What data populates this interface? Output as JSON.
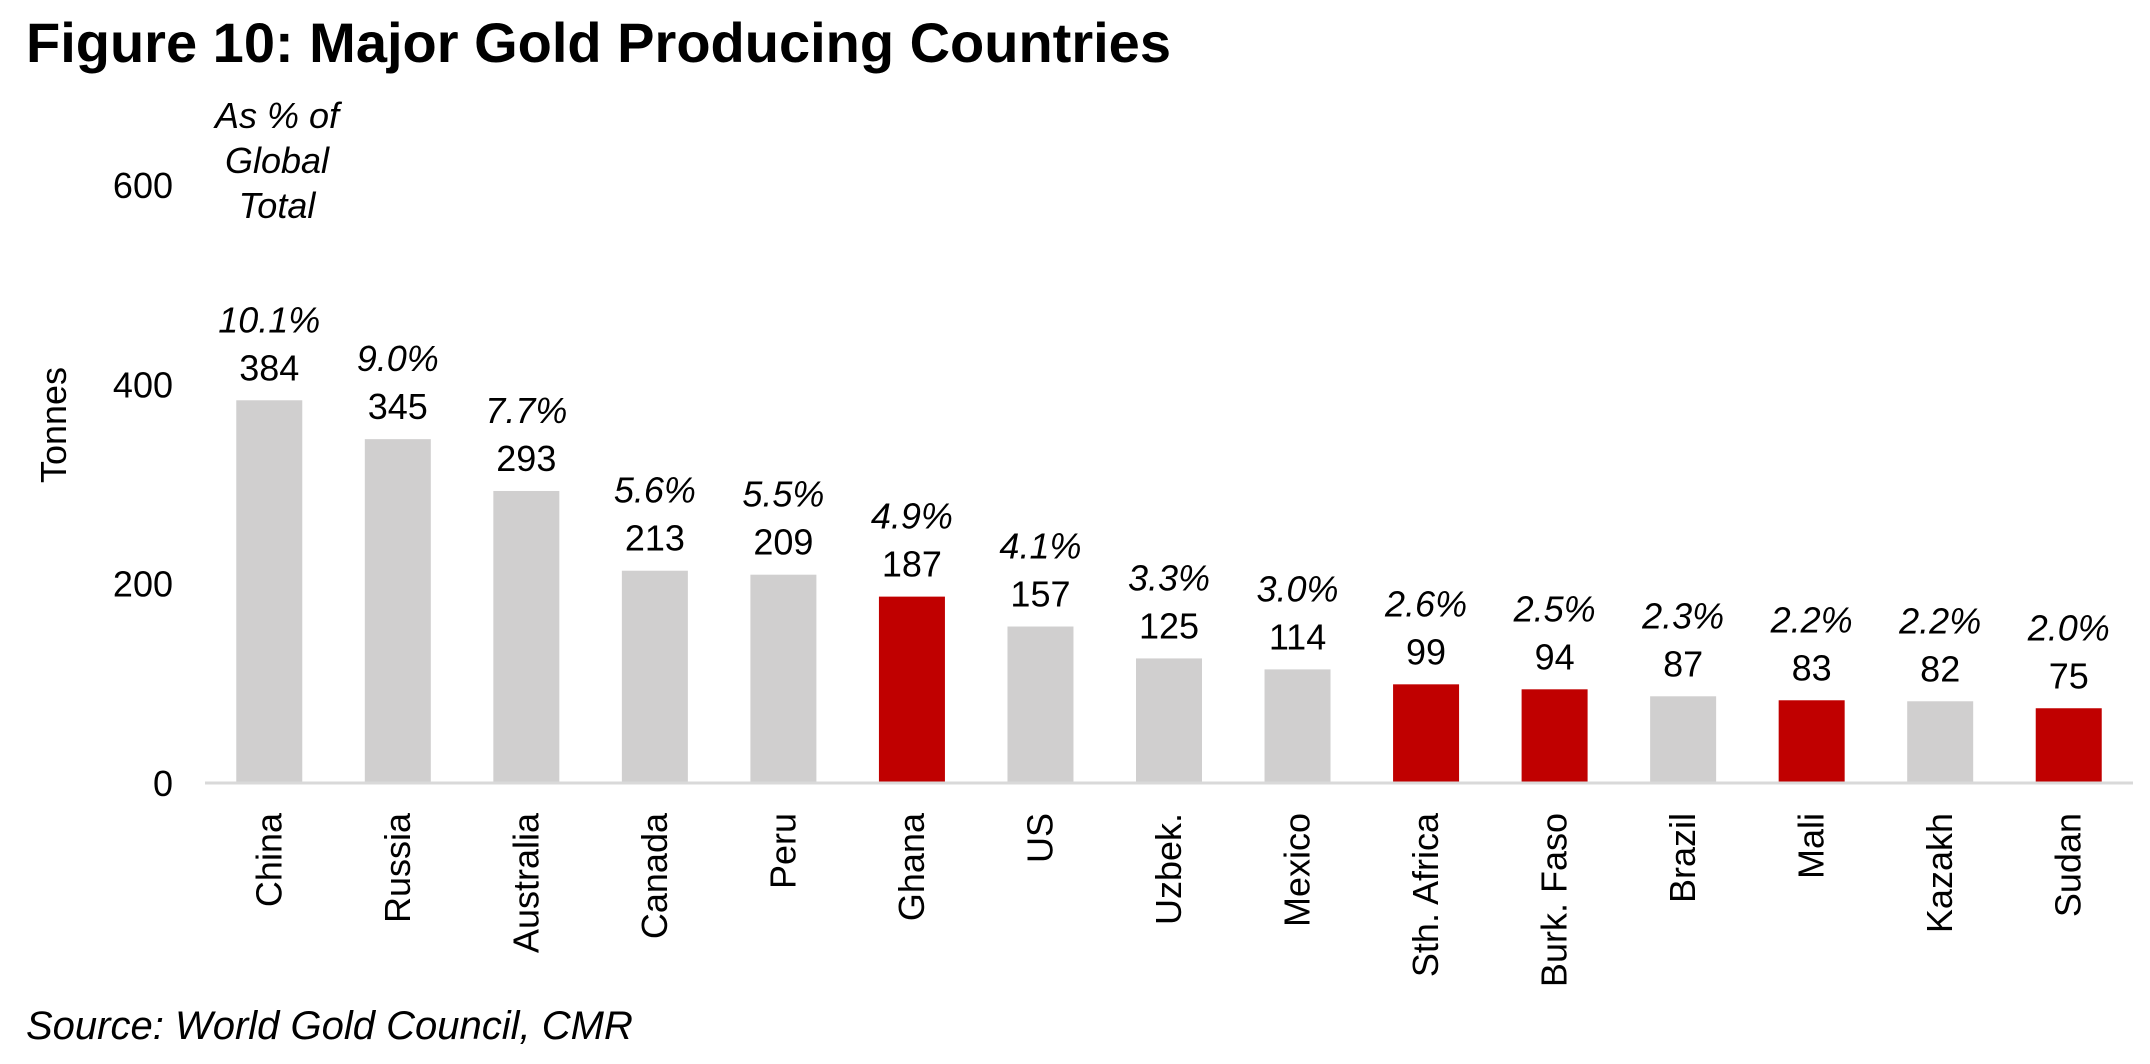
{
  "title": "Figure 10: Major Gold Producing Countries",
  "source": "Source: World Gold Council, CMR",
  "colors": {
    "default_bar": "#d0cfcf",
    "highlight_bar": "#c00000",
    "axis_line": "#d9d9d9",
    "text": "#000000"
  },
  "chart_data": {
    "type": "bar",
    "title": "Figure 10: Major Gold Producing Countries",
    "xlabel": "",
    "ylabel": "Tonnes",
    "ylim": [
      0,
      600
    ],
    "yticks": [
      "0",
      "200",
      "400",
      "600"
    ],
    "annotation_header": [
      "As % of",
      "Global",
      "Total"
    ],
    "categories": [
      "China",
      "Russia",
      "Australia",
      "Canada",
      "Peru",
      "Ghana",
      "US",
      "Uzbek.",
      "Mexico",
      "Sth. Africa",
      "Burk. Faso",
      "Brazil",
      "Mali",
      "Kazakh",
      "Sudan"
    ],
    "values": [
      384,
      345,
      293,
      213,
      209,
      187,
      157,
      125,
      114,
      99,
      94,
      87,
      83,
      82,
      75
    ],
    "value_labels": [
      "384",
      "345",
      "293",
      "213",
      "209",
      "187",
      "157",
      "125",
      "114",
      "99",
      "94",
      "87",
      "83",
      "82",
      "75"
    ],
    "share_labels": [
      "10.1%",
      "9.0%",
      "7.7%",
      "5.6%",
      "5.5%",
      "4.9%",
      "4.1%",
      "3.3%",
      "3.0%",
      "2.6%",
      "2.5%",
      "2.3%",
      "2.2%",
      "2.2%",
      "2.0%"
    ],
    "highlighted": [
      "Ghana",
      "Sth. Africa",
      "Burk. Faso",
      "Mali",
      "Sudan"
    ],
    "grid": false,
    "legend": "none"
  }
}
